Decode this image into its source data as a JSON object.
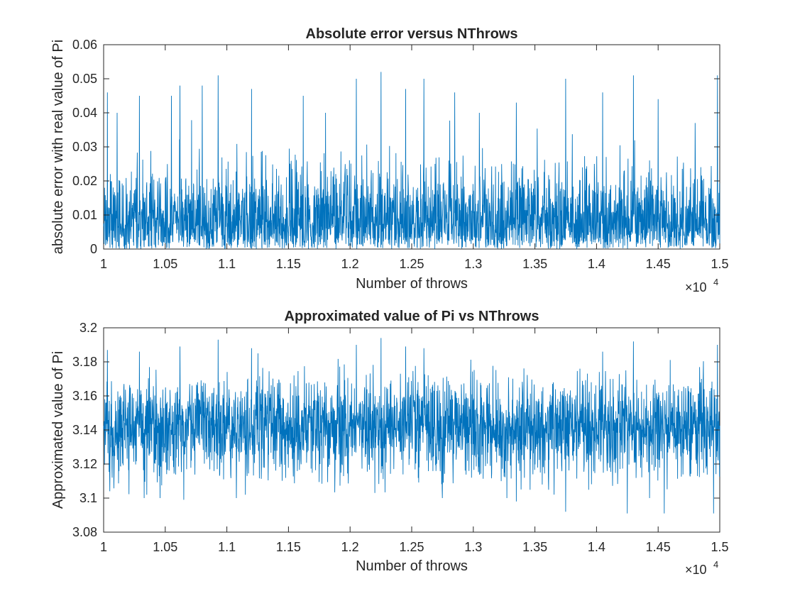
{
  "chart_data": [
    {
      "type": "line",
      "title": "Absolute error versus NThrows",
      "xlabel": "Number of throws",
      "ylabel": "absolute error with real value of Pi",
      "x_exponent_base": "×10",
      "x_exponent_power": "4",
      "xlim": [
        1,
        1.5
      ],
      "ylim": [
        0,
        0.06
      ],
      "x_ticks": [
        "1",
        "1.05",
        "1.1",
        "1.15",
        "1.2",
        "1.25",
        "1.3",
        "1.35",
        "1.4",
        "1.45",
        "1.5"
      ],
      "y_ticks": [
        "0",
        "0.01",
        "0.02",
        "0.03",
        "0.04",
        "0.05",
        "0.06"
      ],
      "line_color": "#0072BD",
      "series": [
        {
          "x_start": 10000,
          "x_end": 15000,
          "typical_range": [
            0,
            0.025
          ],
          "peak_values": [
            [
              10030,
              0.046
            ],
            [
              10110,
              0.04
            ],
            [
              10290,
              0.045
            ],
            [
              10550,
              0.045
            ],
            [
              10620,
              0.048
            ],
            [
              10800,
              0.048
            ],
            [
              10930,
              0.051
            ],
            [
              11200,
              0.047
            ],
            [
              11620,
              0.045
            ],
            [
              11800,
              0.04
            ],
            [
              12050,
              0.05
            ],
            [
              12250,
              0.052
            ],
            [
              12450,
              0.047
            ],
            [
              12600,
              0.05
            ],
            [
              12850,
              0.046
            ],
            [
              13050,
              0.04
            ],
            [
              13350,
              0.043
            ],
            [
              13750,
              0.05
            ],
            [
              14050,
              0.046
            ],
            [
              14300,
              0.051
            ],
            [
              14500,
              0.044
            ],
            [
              14800,
              0.037
            ],
            [
              14980,
              0.051
            ]
          ]
        }
      ]
    },
    {
      "type": "line",
      "title": "Approximated value of Pi vs NThrows",
      "xlabel": "Number of throws",
      "ylabel": "Approximated value of Pi",
      "x_exponent_base": "×10",
      "x_exponent_power": "4",
      "xlim": [
        1,
        1.5
      ],
      "ylim": [
        3.08,
        3.2
      ],
      "x_ticks": [
        "1",
        "1.05",
        "1.1",
        "1.15",
        "1.2",
        "1.25",
        "1.3",
        "1.35",
        "1.4",
        "1.45",
        "1.5"
      ],
      "y_ticks": [
        "3.08",
        "3.1",
        "3.12",
        "3.14",
        "3.16",
        "3.18",
        "3.2"
      ],
      "line_color": "#0072BD",
      "series": [
        {
          "x_start": 10000,
          "x_end": 15000,
          "center": 3.1416,
          "typical_range": [
            3.12,
            3.165
          ],
          "peak_values": [
            [
              10030,
              3.187
            ],
            [
              10290,
              3.186
            ],
            [
              10620,
              3.189
            ],
            [
              10930,
              3.193
            ],
            [
              11200,
              3.188
            ],
            [
              12050,
              3.19
            ],
            [
              12250,
              3.194
            ],
            [
              12450,
              3.189
            ],
            [
              12600,
              3.188
            ],
            [
              13750,
              3.191
            ],
            [
              14050,
              3.186
            ],
            [
              14300,
              3.192
            ],
            [
              14980,
              3.19
            ]
          ],
          "trough_values": [
            [
              10050,
              3.104
            ],
            [
              10350,
              3.102
            ],
            [
              10650,
              3.099
            ],
            [
              11150,
              3.102
            ],
            [
              12200,
              3.103
            ],
            [
              12750,
              3.1
            ],
            [
              13350,
              3.098
            ],
            [
              13750,
              3.092
            ],
            [
              14250,
              3.091
            ],
            [
              14550,
              3.091
            ],
            [
              14950,
              3.091
            ]
          ]
        }
      ]
    }
  ]
}
